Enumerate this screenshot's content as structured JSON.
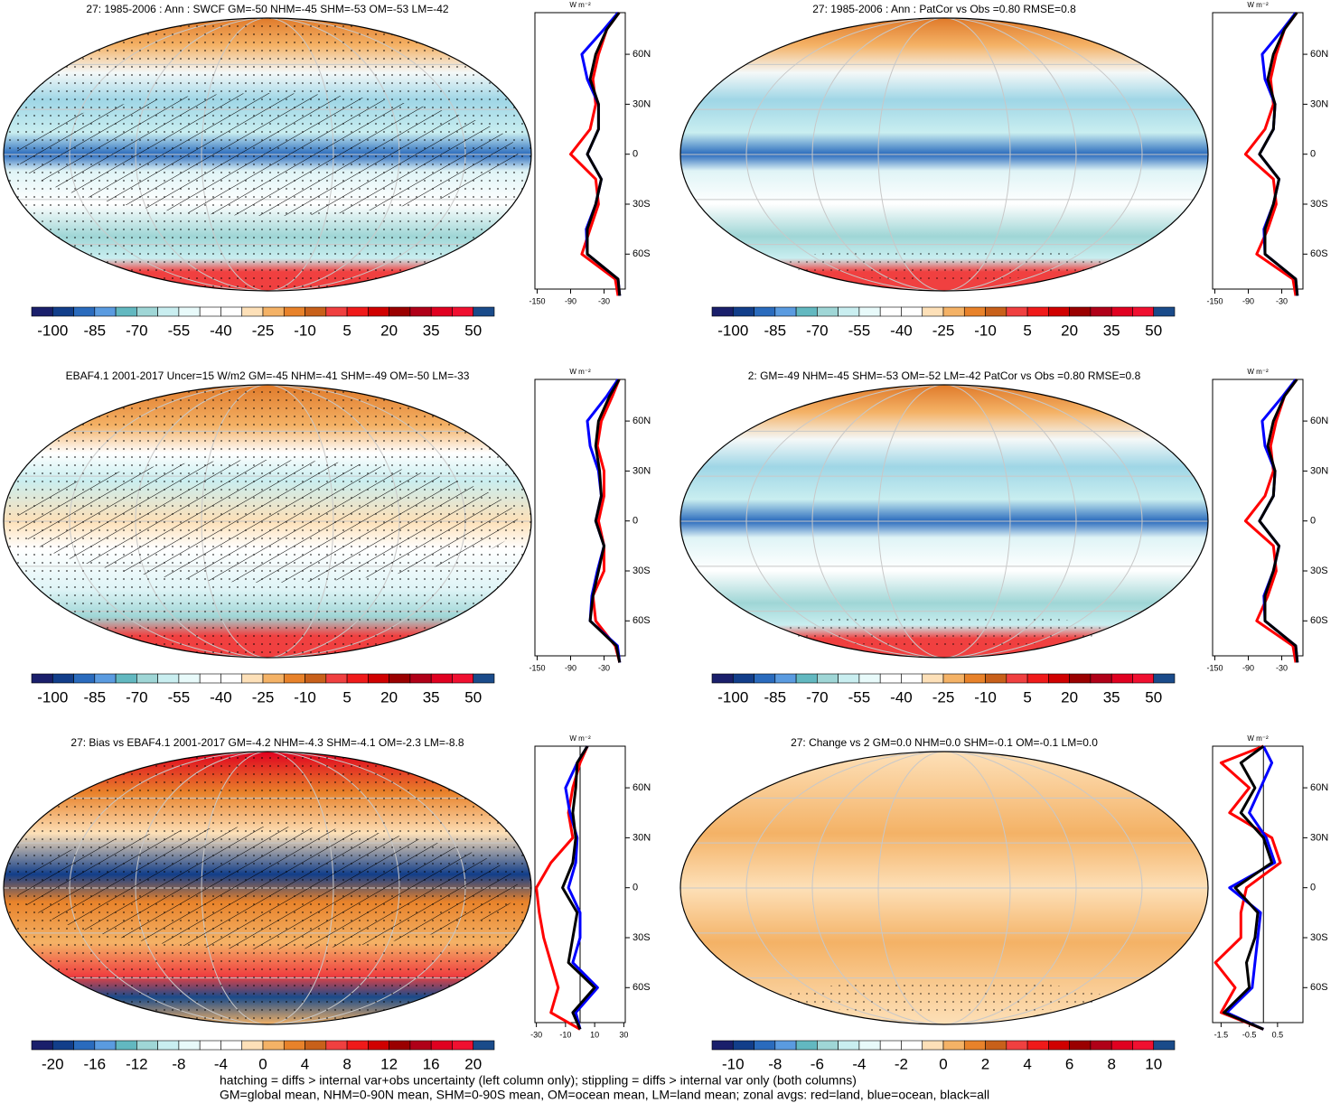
{
  "chart_data": [
    {
      "type": "map",
      "title": "27: 1985-2006 : Ann : SWCF GM=-50 NHM=-45 SHM=-53 OM=-53 LM=-42",
      "colorbar": {
        "colors": [
          "#1a1f6b",
          "#123e8a",
          "#2a6bbd",
          "#5a9be0",
          "#62b8c0",
          "#9fd6d6",
          "#c9eef0",
          "#e8fafa",
          "#ffffff",
          "#ffffff",
          "#fde0b8",
          "#f4b266",
          "#e8822a",
          "#c8601a",
          "#f04040",
          "#f01a1a",
          "#d00000",
          "#9a0000",
          "#b00018",
          "#e00020",
          "#f01030",
          "#1a4b8a"
        ],
        "ticks": [
          -100,
          -85,
          -70,
          -55,
          -40,
          -25,
          -10,
          5,
          20,
          35,
          50
        ]
      },
      "profile": {
        "type": "line",
        "units": "W m⁻²",
        "y": [
          -85,
          -75,
          -60,
          -45,
          -30,
          -15,
          0,
          15,
          30,
          45,
          60,
          75,
          85
        ],
        "ylim": [
          -81,
          85
        ],
        "yticks": [
          {
            "value": -60,
            "label": "60S"
          },
          {
            "value": -30,
            "label": "30S"
          },
          0,
          {
            "value": 30,
            "label": "30N"
          },
          {
            "value": 60,
            "label": "60N"
          }
        ],
        "xlim": [
          -154,
          8
        ],
        "xticks": [
          -150,
          -90,
          -30
        ],
        "zero_line": false,
        "series": [
          {
            "color": "#ff0000",
            "values": [
              -5,
              -10,
              -70,
              -55,
              -40,
              -45,
              -90,
              -55,
              -45,
              -50,
              -40,
              -25,
              -3
            ]
          },
          {
            "color": "#0000ff",
            "values": [
              -2,
              -5,
              -60,
              -62,
              -45,
              -35,
              -60,
              -40,
              -40,
              -60,
              -70,
              -30,
              -5
            ]
          },
          {
            "color": "#000000",
            "values": [
              -2,
              -5,
              -60,
              -60,
              -45,
              -35,
              -60,
              -40,
              -40,
              -55,
              -45,
              -25,
              -3
            ]
          }
        ]
      }
    },
    {
      "type": "map",
      "title": "27: 1985-2006 : Ann : PatCor vs Obs =0.80 RMSE=0.8",
      "colorbar": {
        "colors": [
          "#1a1f6b",
          "#123e8a",
          "#2a6bbd",
          "#5a9be0",
          "#62b8c0",
          "#9fd6d6",
          "#c9eef0",
          "#e8fafa",
          "#ffffff",
          "#ffffff",
          "#fde0b8",
          "#f4b266",
          "#e8822a",
          "#c8601a",
          "#f04040",
          "#f01a1a",
          "#d00000",
          "#9a0000",
          "#b00018",
          "#e00020",
          "#f01030",
          "#1a4b8a"
        ],
        "ticks": [
          -100,
          -85,
          -70,
          -55,
          -40,
          -25,
          -10,
          5,
          20,
          35,
          50
        ]
      },
      "profile": {
        "type": "line",
        "units": "W m⁻²",
        "y": [
          -85,
          -75,
          -60,
          -45,
          -30,
          -15,
          0,
          15,
          30,
          45,
          60,
          75,
          85
        ],
        "ylim": [
          -81,
          85
        ],
        "yticks": [
          {
            "value": -60,
            "label": "60S"
          },
          {
            "value": -30,
            "label": "30S"
          },
          0,
          {
            "value": 30,
            "label": "30N"
          },
          {
            "value": 60,
            "label": "60N"
          }
        ],
        "xlim": [
          -154,
          8
        ],
        "xticks": [
          -150,
          -90,
          -30
        ],
        "zero_line": false,
        "series": [
          {
            "color": "#ff0000",
            "values": [
              -5,
              -10,
              -75,
              -55,
              -40,
              -45,
              -95,
              -60,
              -45,
              -50,
              -40,
              -25,
              -3
            ]
          },
          {
            "color": "#0000ff",
            "values": [
              -2,
              -5,
              -60,
              -62,
              -45,
              -35,
              -70,
              -45,
              -42,
              -60,
              -65,
              -28,
              -5
            ]
          },
          {
            "color": "#000000",
            "values": [
              -2,
              -5,
              -60,
              -60,
              -45,
              -35,
              -70,
              -45,
              -42,
              -55,
              -45,
              -25,
              -3
            ]
          }
        ]
      }
    },
    {
      "type": "map",
      "title": "EBAF4.1 2001-2017 Uncer=15 W/m2 GM=-45 NHM=-41 SHM=-49 OM=-50 LM=-33",
      "colorbar": {
        "colors": [
          "#1a1f6b",
          "#123e8a",
          "#2a6bbd",
          "#5a9be0",
          "#62b8c0",
          "#9fd6d6",
          "#c9eef0",
          "#e8fafa",
          "#ffffff",
          "#ffffff",
          "#fde0b8",
          "#f4b266",
          "#e8822a",
          "#c8601a",
          "#f04040",
          "#f01a1a",
          "#d00000",
          "#9a0000",
          "#b00018",
          "#e00020",
          "#f01030",
          "#1a4b8a"
        ],
        "ticks": [
          -100,
          -85,
          -70,
          -55,
          -40,
          -25,
          -10,
          5,
          20,
          35,
          50
        ]
      },
      "profile": {
        "type": "line",
        "units": "W m⁻²",
        "y": [
          -85,
          -75,
          -60,
          -45,
          -30,
          -15,
          0,
          15,
          30,
          45,
          60,
          75,
          85
        ],
        "ylim": [
          -81,
          85
        ],
        "yticks": [
          {
            "value": -60,
            "label": "60S"
          },
          {
            "value": -30,
            "label": "30S"
          },
          0,
          {
            "value": 30,
            "label": "30N"
          },
          {
            "value": 60,
            "label": "60N"
          }
        ],
        "xlim": [
          -154,
          8
        ],
        "xticks": [
          -150,
          -90,
          -30
        ],
        "zero_line": false,
        "series": [
          {
            "color": "#ff0000",
            "values": [
              -2,
              -10,
              -45,
              -50,
              -30,
              -30,
              -40,
              -30,
              -30,
              -42,
              -35,
              -15,
              -3
            ]
          },
          {
            "color": "#0000ff",
            "values": [
              -2,
              -6,
              -55,
              -52,
              -42,
              -30,
              -45,
              -35,
              -40,
              -55,
              -60,
              -25,
              -5
            ]
          },
          {
            "color": "#000000",
            "values": [
              -2,
              -8,
              -55,
              -50,
              -40,
              -30,
              -45,
              -35,
              -38,
              -45,
              -40,
              -20,
              -3
            ]
          }
        ]
      }
    },
    {
      "type": "map",
      "title": "2: GM=-49 NHM=-45 SHM=-53 OM=-52 LM=-42 PatCor vs Obs =0.80 RMSE=0.8",
      "colorbar": {
        "colors": [
          "#1a1f6b",
          "#123e8a",
          "#2a6bbd",
          "#5a9be0",
          "#62b8c0",
          "#9fd6d6",
          "#c9eef0",
          "#e8fafa",
          "#ffffff",
          "#ffffff",
          "#fde0b8",
          "#f4b266",
          "#e8822a",
          "#c8601a",
          "#f04040",
          "#f01a1a",
          "#d00000",
          "#9a0000",
          "#b00018",
          "#e00020",
          "#f01030",
          "#1a4b8a"
        ],
        "ticks": [
          -100,
          -85,
          -70,
          -55,
          -40,
          -25,
          -10,
          5,
          20,
          35,
          50
        ]
      },
      "profile": {
        "type": "line",
        "units": "W m⁻²",
        "y": [
          -85,
          -75,
          -60,
          -45,
          -30,
          -15,
          0,
          15,
          30,
          45,
          60,
          75,
          85
        ],
        "ylim": [
          -81,
          85
        ],
        "yticks": [
          {
            "value": -60,
            "label": "60S"
          },
          {
            "value": -30,
            "label": "30S"
          },
          0,
          {
            "value": 30,
            "label": "30N"
          },
          {
            "value": 60,
            "label": "60N"
          }
        ],
        "xlim": [
          -154,
          8
        ],
        "xticks": [
          -150,
          -90,
          -30
        ],
        "zero_line": false,
        "series": [
          {
            "color": "#ff0000",
            "values": [
              -5,
              -10,
              -75,
              -55,
              -40,
              -45,
              -95,
              -60,
              -45,
              -50,
              -40,
              -25,
              -3
            ]
          },
          {
            "color": "#0000ff",
            "values": [
              -2,
              -5,
              -60,
              -62,
              -45,
              -35,
              -70,
              -45,
              -42,
              -60,
              -65,
              -28,
              -5
            ]
          },
          {
            "color": "#000000",
            "values": [
              -2,
              -5,
              -60,
              -60,
              -45,
              -35,
              -70,
              -45,
              -42,
              -55,
              -45,
              -25,
              -3
            ]
          }
        ]
      }
    },
    {
      "type": "map",
      "title": "27: Bias vs EBAF4.1 2001-2017 GM=-4.2 NHM=-4.3 SHM=-4.1 OM=-2.3 LM=-8.8",
      "colorbar": {
        "colors": [
          "#1a1f6b",
          "#123e8a",
          "#2a6bbd",
          "#5a9be0",
          "#62b8c0",
          "#9fd6d6",
          "#c9eef0",
          "#e8fafa",
          "#ffffff",
          "#ffffff",
          "#fde0b8",
          "#f4b266",
          "#e8822a",
          "#c8601a",
          "#f04040",
          "#f01a1a",
          "#d00000",
          "#9a0000",
          "#b00018",
          "#e00020",
          "#f01030",
          "#1a4b8a"
        ],
        "ticks": [
          -20,
          -16,
          -12,
          -8,
          -4,
          0,
          4,
          8,
          12,
          16,
          20
        ]
      },
      "profile": {
        "type": "line",
        "units": "W m⁻²",
        "y": [
          -85,
          -75,
          -60,
          -45,
          -30,
          -15,
          0,
          15,
          30,
          45,
          60,
          75,
          85
        ],
        "ylim": [
          -81,
          85
        ],
        "yticks": [
          {
            "value": -60,
            "label": "60S"
          },
          {
            "value": -30,
            "label": "30S"
          },
          0,
          {
            "value": 30,
            "label": "30N"
          },
          {
            "value": 60,
            "label": "60N"
          }
        ],
        "xlim": [
          -31,
          31
        ],
        "xticks": [
          -30,
          -10,
          10,
          30
        ],
        "zero_line": true,
        "series": [
          {
            "color": "#ff0000",
            "values": [
              0,
              -20,
              -15,
              -20,
              -25,
              -28,
              -30,
              -20,
              -5,
              -8,
              -5,
              0,
              5
            ]
          },
          {
            "color": "#0000ff",
            "values": [
              0,
              -3,
              12,
              -5,
              0,
              0,
              -8,
              -3,
              -2,
              -7,
              -10,
              -2,
              5
            ]
          },
          {
            "color": "#000000",
            "values": [
              0,
              -5,
              10,
              -8,
              -5,
              -2,
              -12,
              -5,
              -3,
              -5,
              -3,
              -2,
              5
            ]
          }
        ]
      }
    },
    {
      "type": "map",
      "title": "27: Change vs 2 GM=0.0 NHM=0.0 SHM=-0.1 OM=-0.1 LM=0.0",
      "colorbar": {
        "colors": [
          "#1a1f6b",
          "#123e8a",
          "#2a6bbd",
          "#5a9be0",
          "#62b8c0",
          "#9fd6d6",
          "#c9eef0",
          "#e8fafa",
          "#ffffff",
          "#ffffff",
          "#fde0b8",
          "#f4b266",
          "#e8822a",
          "#c8601a",
          "#f04040",
          "#f01a1a",
          "#d00000",
          "#9a0000",
          "#b00018",
          "#e00020",
          "#f01030",
          "#1a4b8a"
        ],
        "ticks": [
          -10,
          -8,
          -6,
          -4,
          -2,
          0,
          2,
          4,
          6,
          8,
          10
        ]
      },
      "profile": {
        "type": "line",
        "units": "W m⁻²",
        "y": [
          -85,
          -75,
          -60,
          -45,
          -30,
          -15,
          0,
          15,
          30,
          45,
          60,
          75,
          85
        ],
        "ylim": [
          -81,
          85
        ],
        "yticks": [
          {
            "value": -60,
            "label": "60S"
          },
          {
            "value": -30,
            "label": "30S"
          },
          0,
          {
            "value": 30,
            "label": "30N"
          },
          {
            "value": 60,
            "label": "60N"
          }
        ],
        "xlim": [
          -1.8,
          1.4
        ],
        "xticks": [
          -1.5,
          -0.5,
          0.5
        ],
        "zero_line": true,
        "series": [
          {
            "color": "#ff0000",
            "values": [
              0,
              -1.5,
              -1.0,
              -1.7,
              -0.8,
              -0.8,
              -0.6,
              0.6,
              0.3,
              -1.2,
              -0.5,
              -1.5,
              0
            ]
          },
          {
            "color": "#0000ff",
            "values": [
              0,
              -1.3,
              -0.4,
              -0.3,
              -0.2,
              -0.1,
              -1.2,
              0.4,
              0.1,
              -0.5,
              -0.1,
              0.3,
              0
            ]
          },
          {
            "color": "#000000",
            "values": [
              0,
              -1.4,
              -0.5,
              -0.6,
              -0.3,
              -0.2,
              -1.0,
              0.3,
              0,
              -0.8,
              -0.3,
              -0.8,
              0
            ]
          }
        ]
      }
    }
  ],
  "footer": [
    "hatching = diffs > internal var+obs uncertainty (left column only); stippling = diffs > internal var only (both columns)",
    "GM=global mean, NHM=0-90N mean, SHM=0-90S mean, OM=ocean mean, LM=land mean; zonal avgs: red=land, blue=ocean, black=all"
  ]
}
